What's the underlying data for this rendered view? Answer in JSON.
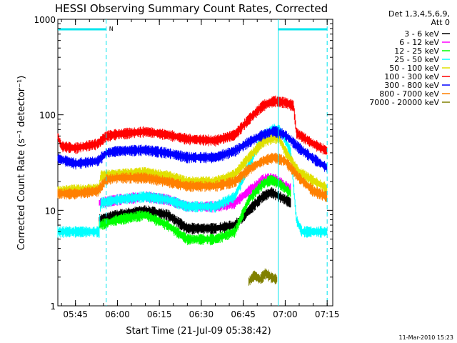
{
  "chart_data": {
    "type": "line",
    "title": "HESSI Observing Summary Count Rates, Corrected",
    "xlabel": "Start Time (21-Jul-09 05:38:42)",
    "ylabel": "Corrected Count Rate (s⁻¹ detector⁻¹)",
    "yscale": "log",
    "ylim": [
      1,
      1000
    ],
    "xlim": [
      "05:38:42",
      "07:17:00"
    ],
    "x_ticks": [
      "05:45",
      "06:00",
      "06:15",
      "06:30",
      "06:45",
      "07:00",
      "07:15"
    ],
    "y_ticks": [
      "1",
      "10",
      "100",
      "1000"
    ],
    "grid": false,
    "legend_position": "right",
    "legend_header": [
      "Det 1,3,4,5,6,9,",
      "Att 0"
    ],
    "timestamp": "11-Mar-2010 15:23",
    "markers": {
      "vertical_lines": [
        {
          "time": "05:56:00",
          "style": "dashed",
          "color": "#00e5ee"
        },
        {
          "time": "06:57:30",
          "style": "solid",
          "color": "#00e5ee"
        },
        {
          "time": "07:15:00",
          "style": "dashed",
          "color": "#00e5ee"
        }
      ],
      "top_bars": [
        {
          "start": "05:38:42",
          "end": "05:56:00",
          "label": "N",
          "color": "#00e5ee"
        },
        {
          "start": "06:57:30",
          "end": "07:15:00",
          "label": "",
          "color": "#00e5ee"
        }
      ]
    },
    "series": [
      {
        "name": "3 - 6 keV",
        "color": "#000000",
        "points": [
          [
            "05:53:30",
            8
          ],
          [
            "06:00",
            9
          ],
          [
            "06:10",
            10
          ],
          [
            "06:18",
            9
          ],
          [
            "06:25",
            6.5
          ],
          [
            "06:35",
            6.5
          ],
          [
            "06:42",
            7
          ],
          [
            "06:47",
            10
          ],
          [
            "06:52",
            14
          ],
          [
            "06:55",
            15.5
          ],
          [
            "06:58",
            14
          ],
          [
            "07:00",
            13
          ],
          [
            "07:02",
            12
          ]
        ]
      },
      {
        "name": "6 - 12 keV",
        "color": "#ff00ff",
        "points": [
          [
            "05:53:30",
            12
          ],
          [
            "06:00",
            13
          ],
          [
            "06:10",
            14
          ],
          [
            "06:18",
            13
          ],
          [
            "06:25",
            11
          ],
          [
            "06:35",
            11
          ],
          [
            "06:42",
            12
          ],
          [
            "06:47",
            16
          ],
          [
            "06:52",
            21
          ],
          [
            "06:55",
            22
          ],
          [
            "06:58",
            20
          ],
          [
            "07:00",
            18
          ],
          [
            "07:02",
            17
          ]
        ]
      },
      {
        "name": "12 - 25 keV",
        "color": "#00ff00",
        "points": [
          [
            "05:53:30",
            7
          ],
          [
            "06:00",
            8
          ],
          [
            "06:10",
            9
          ],
          [
            "06:18",
            7
          ],
          [
            "06:25",
            5
          ],
          [
            "06:35",
            5
          ],
          [
            "06:42",
            6
          ],
          [
            "06:47",
            13
          ],
          [
            "06:52",
            19
          ],
          [
            "06:55",
            21
          ],
          [
            "06:58",
            19
          ],
          [
            "07:00",
            17
          ],
          [
            "07:02",
            15
          ]
        ]
      },
      {
        "name": "25 - 50 keV",
        "color": "#00ffff",
        "points": [
          [
            "05:38:42",
            6
          ],
          [
            "05:53:30",
            6
          ],
          [
            "05:54",
            12
          ],
          [
            "06:00",
            13
          ],
          [
            "06:10",
            14
          ],
          [
            "06:18",
            13
          ],
          [
            "06:25",
            11
          ],
          [
            "06:35",
            11
          ],
          [
            "06:42",
            14
          ],
          [
            "06:47",
            30
          ],
          [
            "06:52",
            60
          ],
          [
            "06:56",
            72
          ],
          [
            "06:58",
            70
          ],
          [
            "07:00",
            55
          ],
          [
            "07:02",
            40
          ],
          [
            "07:04",
            8
          ],
          [
            "07:06",
            6
          ],
          [
            "07:15",
            6
          ]
        ]
      },
      {
        "name": "50 - 100 keV",
        "color": "#e0e000",
        "points": [
          [
            "05:38:42",
            16
          ],
          [
            "05:53:30",
            17
          ],
          [
            "05:54",
            23
          ],
          [
            "06:00",
            24
          ],
          [
            "06:10",
            25
          ],
          [
            "06:18",
            23
          ],
          [
            "06:25",
            20
          ],
          [
            "06:35",
            20
          ],
          [
            "06:42",
            24
          ],
          [
            "06:47",
            36
          ],
          [
            "06:52",
            52
          ],
          [
            "06:56",
            58
          ],
          [
            "06:58",
            56
          ],
          [
            "07:00",
            42
          ],
          [
            "07:05",
            25
          ],
          [
            "07:15",
            17
          ]
        ]
      },
      {
        "name": "100 - 300 keV",
        "color": "#ff0000",
        "points": [
          [
            "05:38:42",
            60
          ],
          [
            "05:40",
            47
          ],
          [
            "05:45",
            45
          ],
          [
            "05:53",
            50
          ],
          [
            "05:56",
            60
          ],
          [
            "06:00",
            63
          ],
          [
            "06:10",
            67
          ],
          [
            "06:18",
            62
          ],
          [
            "06:25",
            56
          ],
          [
            "06:35",
            54
          ],
          [
            "06:42",
            62
          ],
          [
            "06:47",
            90
          ],
          [
            "06:52",
            125
          ],
          [
            "06:56",
            140
          ],
          [
            "07:00",
            135
          ],
          [
            "07:03",
            125
          ],
          [
            "07:04",
            65
          ],
          [
            "07:10",
            50
          ],
          [
            "07:15",
            42
          ]
        ]
      },
      {
        "name": "300 - 800 keV",
        "color": "#0000ff",
        "points": [
          [
            "05:38:42",
            35
          ],
          [
            "05:45",
            31
          ],
          [
            "05:53",
            33
          ],
          [
            "05:56",
            40
          ],
          [
            "06:00",
            42
          ],
          [
            "06:10",
            43
          ],
          [
            "06:18",
            40
          ],
          [
            "06:25",
            36
          ],
          [
            "06:35",
            36
          ],
          [
            "06:42",
            42
          ],
          [
            "06:47",
            52
          ],
          [
            "06:52",
            62
          ],
          [
            "06:56",
            68
          ],
          [
            "07:00",
            62
          ],
          [
            "07:05",
            45
          ],
          [
            "07:10",
            35
          ],
          [
            "07:15",
            28
          ]
        ]
      },
      {
        "name": "800 - 7000 keV",
        "color": "#ff8000",
        "points": [
          [
            "05:38:42",
            15
          ],
          [
            "05:45",
            15
          ],
          [
            "05:53",
            16
          ],
          [
            "05:56",
            21
          ],
          [
            "06:00",
            22
          ],
          [
            "06:10",
            22
          ],
          [
            "06:18",
            20
          ],
          [
            "06:25",
            18
          ],
          [
            "06:35",
            18
          ],
          [
            "06:42",
            20
          ],
          [
            "06:47",
            27
          ],
          [
            "06:52",
            33
          ],
          [
            "06:56",
            36
          ],
          [
            "07:00",
            33
          ],
          [
            "07:05",
            22
          ],
          [
            "07:10",
            16
          ],
          [
            "07:15",
            14
          ]
        ]
      },
      {
        "name": "7000 - 20000 keV",
        "color": "#808000",
        "points": [
          [
            "06:47",
            1.8
          ],
          [
            "06:49",
            2.1
          ],
          [
            "06:51",
            1.9
          ],
          [
            "06:53",
            2.2
          ],
          [
            "06:55",
            2
          ],
          [
            "06:57",
            1.9
          ]
        ]
      }
    ]
  }
}
